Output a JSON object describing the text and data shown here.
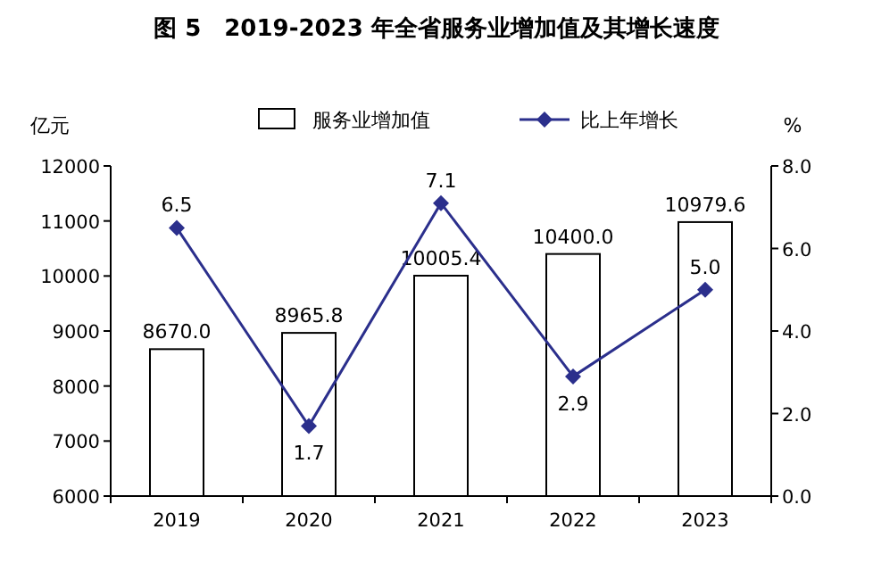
{
  "chart_data": {
    "type": "bar",
    "title": "图 5　2019-2023 年全省服务业增加值及其增长速度",
    "categories": [
      "2019",
      "2020",
      "2021",
      "2022",
      "2023"
    ],
    "series": [
      {
        "name": "服务业增加值",
        "color": "#ffffff",
        "values": [
          8670.0,
          8965.8,
          10005.4,
          10400.0,
          10979.6
        ],
        "value_labels": [
          "8670.0",
          "8965.8",
          "10005.4",
          "10400.0",
          "10979.6"
        ]
      },
      {
        "name": "比上年增长",
        "type": "line",
        "axis": "y2",
        "color": "#2b2f8c",
        "marker": "diamond",
        "values": [
          6.5,
          1.7,
          7.1,
          2.9,
          5.0
        ],
        "value_labels": [
          "6.5",
          "1.7",
          "7.1",
          "2.9",
          "5.0"
        ]
      }
    ],
    "ylabel": "亿元",
    "y2label": "%",
    "ylim": [
      6000,
      12000
    ],
    "yticks": [
      6000,
      7000,
      8000,
      9000,
      10000,
      11000,
      12000
    ],
    "y2lim": [
      0,
      8
    ],
    "y2ticks": [
      {
        "value": 0,
        "label": "0.0"
      },
      {
        "value": 2,
        "label": "2.0"
      },
      {
        "value": 4,
        "label": "4.0"
      },
      {
        "value": 6,
        "label": "6.0"
      },
      {
        "value": 8,
        "label": "8.0"
      }
    ],
    "legend": "top",
    "grid": false
  }
}
